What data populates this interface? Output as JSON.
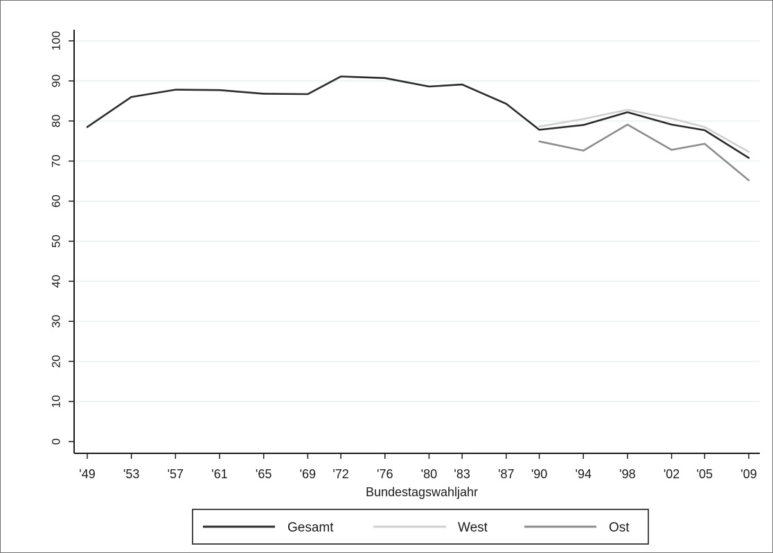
{
  "chart_data": {
    "type": "line",
    "xlabel": "Bundestagswahljahr",
    "ylabel": "",
    "title": "",
    "ylim": [
      0,
      100
    ],
    "y_ticks": [
      0,
      10,
      20,
      30,
      40,
      50,
      60,
      70,
      80,
      90,
      100
    ],
    "x_ticks": [
      1949,
      1953,
      1957,
      1961,
      1965,
      1969,
      1972,
      1976,
      1980,
      1983,
      1987,
      1990,
      1994,
      1998,
      2002,
      2005,
      2009
    ],
    "x_tick_labels": [
      "'49",
      "'53",
      "'57",
      "'61",
      "'65",
      "'69",
      "'72",
      "'76",
      "'80",
      "'83",
      "'87",
      "'90",
      "'94",
      "'98",
      "'02",
      "'05",
      "'09"
    ],
    "grid": "horizontal",
    "legend_position": "bottom",
    "series": [
      {
        "name": "Gesamt",
        "color": "#2b2b2b",
        "x": [
          1949,
          1953,
          1957,
          1961,
          1965,
          1969,
          1972,
          1976,
          1980,
          1983,
          1987,
          1990,
          1994,
          1998,
          2002,
          2005,
          2009
        ],
        "values": [
          78.5,
          86.0,
          87.8,
          87.7,
          86.8,
          86.7,
          91.1,
          90.7,
          88.6,
          89.1,
          84.3,
          77.8,
          79.0,
          82.2,
          79.1,
          77.7,
          70.8
        ]
      },
      {
        "name": "West",
        "color": "#cfcfcf",
        "x": [
          1990,
          1994,
          1998,
          2002,
          2005,
          2009
        ],
        "values": [
          78.6,
          80.5,
          82.8,
          80.6,
          78.5,
          72.3
        ]
      },
      {
        "name": "Ost",
        "color": "#8c8c8c",
        "x": [
          1990,
          1994,
          1998,
          2002,
          2005,
          2009
        ],
        "values": [
          74.9,
          72.6,
          79.1,
          72.8,
          74.3,
          65.2
        ]
      }
    ]
  }
}
